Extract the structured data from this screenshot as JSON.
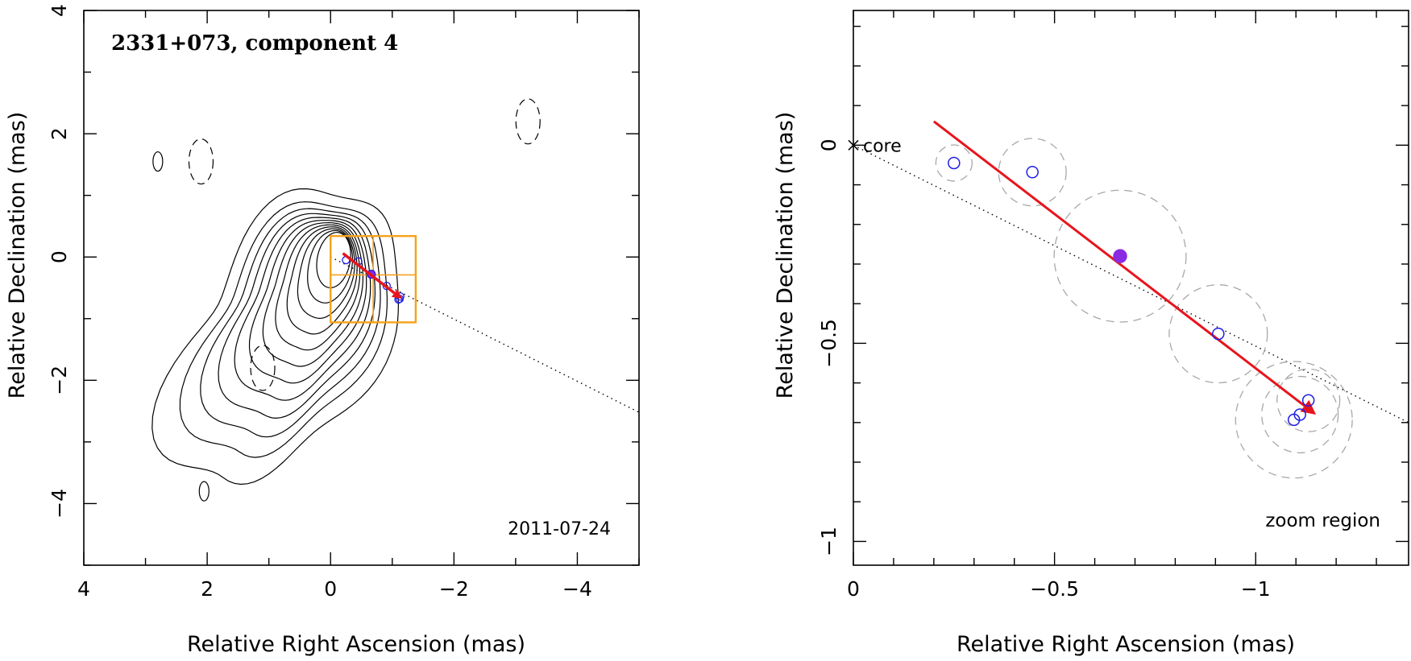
{
  "chart_data": [
    {
      "type": "contour",
      "title": "2331+073, component 4",
      "date_label": "2011-07-24",
      "xlabel": "Relative Right Ascension (mas)",
      "ylabel": "Relative Declination (mas)",
      "xlim": [
        4,
        -5
      ],
      "ylim": [
        -5,
        4
      ],
      "xticks": [
        {
          "value": 4,
          "label": "4"
        },
        {
          "value": 2,
          "label": "2"
        },
        {
          "value": 0,
          "label": "0"
        },
        {
          "value": -2,
          "label": "−2"
        },
        {
          "value": -4,
          "label": "−4"
        }
      ],
      "yticks": [
        {
          "value": 4,
          "label": "4"
        },
        {
          "value": 2,
          "label": "2"
        },
        {
          "value": 0,
          "label": "0"
        },
        {
          "value": -2,
          "label": "−2"
        },
        {
          "value": -4,
          "label": "−4"
        }
      ],
      "contour_levels": 12,
      "contour_shape_note": "nested contours peaking near RA 0.05, Dec 0",
      "jet_direction_line": {
        "from": [
          0,
          0
        ],
        "to": [
          -5,
          -2.52
        ]
      },
      "zoom_box": {
        "ra": [
          0,
          -1.38
        ],
        "dec": [
          -1.06,
          0.34
        ]
      },
      "component_points": [
        {
          "ra": -0.25,
          "dec": -0.05
        },
        {
          "ra": -0.45,
          "dec": -0.07
        },
        {
          "ra": -0.66,
          "dec": -0.28,
          "filled": true
        },
        {
          "ra": -0.91,
          "dec": -0.47
        },
        {
          "ra": -1.13,
          "dec": -0.64
        },
        {
          "ra": -1.1,
          "dec": -0.69
        },
        {
          "ra": -1.12,
          "dec": -0.68
        }
      ],
      "velocity_arrow": {
        "from": [
          -0.2,
          0.06
        ],
        "to": [
          -1.16,
          -0.68
        ]
      },
      "outer_islands": [
        {
          "ra": 2.8,
          "dec": 1.55,
          "style": "solid"
        },
        {
          "ra": 2.1,
          "dec": 1.55,
          "style": "dashed"
        },
        {
          "ra": -3.2,
          "dec": 2.2,
          "style": "dashed"
        },
        {
          "ra": 1.1,
          "dec": -1.8,
          "style": "dashed"
        },
        {
          "ra": 2.05,
          "dec": -3.8,
          "style": "solid"
        }
      ]
    },
    {
      "type": "scatter",
      "region_label": "zoom region",
      "core_label": "core",
      "xlabel": "Relative Right Ascension (mas)",
      "ylabel": "Relative Declination (mas)",
      "xlim": [
        0,
        -1.38
      ],
      "ylim": [
        -1.06,
        0.34
      ],
      "xticks": [
        {
          "value": 0,
          "label": "0"
        },
        {
          "value": -0.5,
          "label": "−0.5"
        },
        {
          "value": -1,
          "label": "−1"
        }
      ],
      "yticks": [
        {
          "value": 0,
          "label": "0"
        },
        {
          "value": -0.5,
          "label": "−0.5"
        },
        {
          "value": -1,
          "label": "−1"
        }
      ],
      "core": {
        "ra": 0,
        "dec": 0
      },
      "jet_direction_line": {
        "from": [
          0,
          0
        ],
        "to": [
          -1.38,
          -0.7
        ]
      },
      "components": [
        {
          "ra": -0.25,
          "dec": -0.045,
          "size": 0.045,
          "filled": false
        },
        {
          "ra": -0.445,
          "dec": -0.068,
          "size": 0.084,
          "filled": false
        },
        {
          "ra": -0.663,
          "dec": -0.28,
          "size": 0.164,
          "filled": true
        },
        {
          "ra": -0.907,
          "dec": -0.476,
          "size": 0.122,
          "filled": false
        },
        {
          "ra": -1.131,
          "dec": -0.644,
          "size": 0.078,
          "filled": false
        },
        {
          "ra": -1.095,
          "dec": -0.693,
          "size": 0.145,
          "filled": false
        },
        {
          "ra": -1.11,
          "dec": -0.68,
          "size": 0.095,
          "filled": false
        }
      ],
      "velocity_arrow": {
        "from": [
          -0.2,
          0.06
        ],
        "to": [
          -1.15,
          -0.68
        ]
      }
    }
  ],
  "colors": {
    "axis": "#000000",
    "contour": "#000000",
    "component_marker": "#1f1fe6",
    "filled_component": "#8a2be2",
    "arrow": "#e8141c",
    "zoom_box": "#f5a31a",
    "size_circle": "#a8a8a8"
  }
}
